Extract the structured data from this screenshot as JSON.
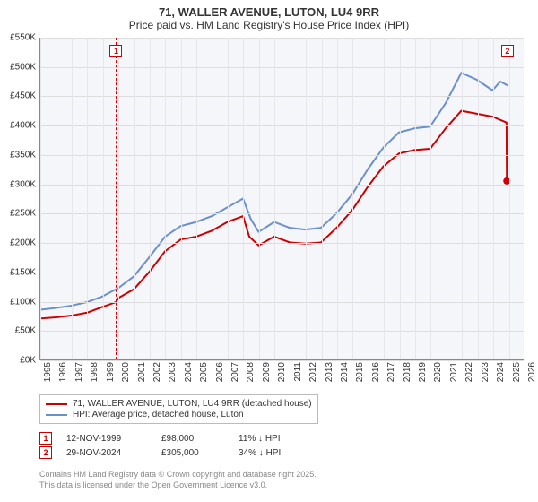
{
  "title_line1": "71, WALLER AVENUE, LUTON, LU4 9RR",
  "title_line2": "Price paid vs. HM Land Registry's House Price Index (HPI)",
  "chart": {
    "type": "line",
    "background_color": "#f5f6fa",
    "grid_color": "#dddddd",
    "axis_color": "#888888",
    "x_years": [
      1995,
      1996,
      1997,
      1998,
      1999,
      2000,
      2001,
      2002,
      2003,
      2004,
      2005,
      2006,
      2007,
      2008,
      2009,
      2010,
      2011,
      2012,
      2013,
      2014,
      2015,
      2016,
      2017,
      2018,
      2019,
      2020,
      2021,
      2022,
      2023,
      2024,
      2025,
      2026
    ],
    "xlim": [
      1995,
      2026
    ],
    "ylim": [
      0,
      550
    ],
    "ytick_step": 50,
    "ytick_prefix": "£",
    "ytick_suffix": "K",
    "yticks": [
      0,
      50,
      100,
      150,
      200,
      250,
      300,
      350,
      400,
      450,
      500,
      550
    ],
    "series": [
      {
        "name": "price_paid",
        "label": "71, WALLER AVENUE, LUTON, LU4 9RR (detached house)",
        "color": "#cc0000",
        "line_width": 2,
        "points": [
          [
            1995,
            70
          ],
          [
            1996,
            72
          ],
          [
            1997,
            75
          ],
          [
            1998,
            80
          ],
          [
            1999,
            90
          ],
          [
            1999.85,
            98
          ],
          [
            2000,
            105
          ],
          [
            2001,
            120
          ],
          [
            2002,
            150
          ],
          [
            2003,
            185
          ],
          [
            2004,
            205
          ],
          [
            2005,
            210
          ],
          [
            2006,
            220
          ],
          [
            2007,
            235
          ],
          [
            2008,
            245
          ],
          [
            2008.4,
            210
          ],
          [
            2009,
            195
          ],
          [
            2010,
            210
          ],
          [
            2011,
            200
          ],
          [
            2012,
            198
          ],
          [
            2013,
            200
          ],
          [
            2014,
            225
          ],
          [
            2015,
            255
          ],
          [
            2016,
            295
          ],
          [
            2017,
            330
          ],
          [
            2018,
            352
          ],
          [
            2019,
            358
          ],
          [
            2020,
            360
          ],
          [
            2021,
            395
          ],
          [
            2022,
            425
          ],
          [
            2023,
            420
          ],
          [
            2024,
            415
          ],
          [
            2024.9,
            405
          ],
          [
            2024.92,
            305
          ]
        ],
        "end_dot": [
          2024.92,
          305
        ]
      },
      {
        "name": "hpi",
        "label": "HPI: Average price, detached house, Luton",
        "color": "#6b8fc9",
        "line_width": 2,
        "points": [
          [
            1995,
            85
          ],
          [
            1996,
            88
          ],
          [
            1997,
            92
          ],
          [
            1998,
            98
          ],
          [
            1999,
            108
          ],
          [
            2000,
            122
          ],
          [
            2001,
            142
          ],
          [
            2002,
            175
          ],
          [
            2003,
            210
          ],
          [
            2004,
            228
          ],
          [
            2005,
            235
          ],
          [
            2006,
            245
          ],
          [
            2007,
            260
          ],
          [
            2008,
            275
          ],
          [
            2008.5,
            240
          ],
          [
            2009,
            218
          ],
          [
            2010,
            235
          ],
          [
            2011,
            225
          ],
          [
            2012,
            222
          ],
          [
            2013,
            225
          ],
          [
            2014,
            250
          ],
          [
            2015,
            282
          ],
          [
            2016,
            325
          ],
          [
            2017,
            362
          ],
          [
            2018,
            388
          ],
          [
            2019,
            395
          ],
          [
            2020,
            398
          ],
          [
            2021,
            438
          ],
          [
            2022,
            490
          ],
          [
            2023,
            478
          ],
          [
            2024,
            460
          ],
          [
            2024.5,
            475
          ],
          [
            2025,
            468
          ]
        ]
      }
    ],
    "reference_lines": [
      {
        "id": "1",
        "x": 1999.85,
        "marker_top": true,
        "marker_y": 8
      },
      {
        "id": "2",
        "x": 2024.9,
        "marker_top": true,
        "marker_y": 8
      }
    ]
  },
  "legend": {
    "items": [
      {
        "label": "71, WALLER AVENUE, LUTON, LU4 9RR (detached house)",
        "color": "#cc0000"
      },
      {
        "label": "HPI: Average price, detached house, Luton",
        "color": "#6b8fc9"
      }
    ]
  },
  "keypoints": [
    {
      "id": "1",
      "date": "12-NOV-1999",
      "price": "£98,000",
      "delta": "11% ↓ HPI"
    },
    {
      "id": "2",
      "date": "29-NOV-2024",
      "price": "£305,000",
      "delta": "34% ↓ HPI"
    }
  ],
  "attribution": {
    "line1": "Contains HM Land Registry data © Crown copyright and database right 2025.",
    "line2": "This data is licensed under the Open Government Licence v3.0."
  }
}
